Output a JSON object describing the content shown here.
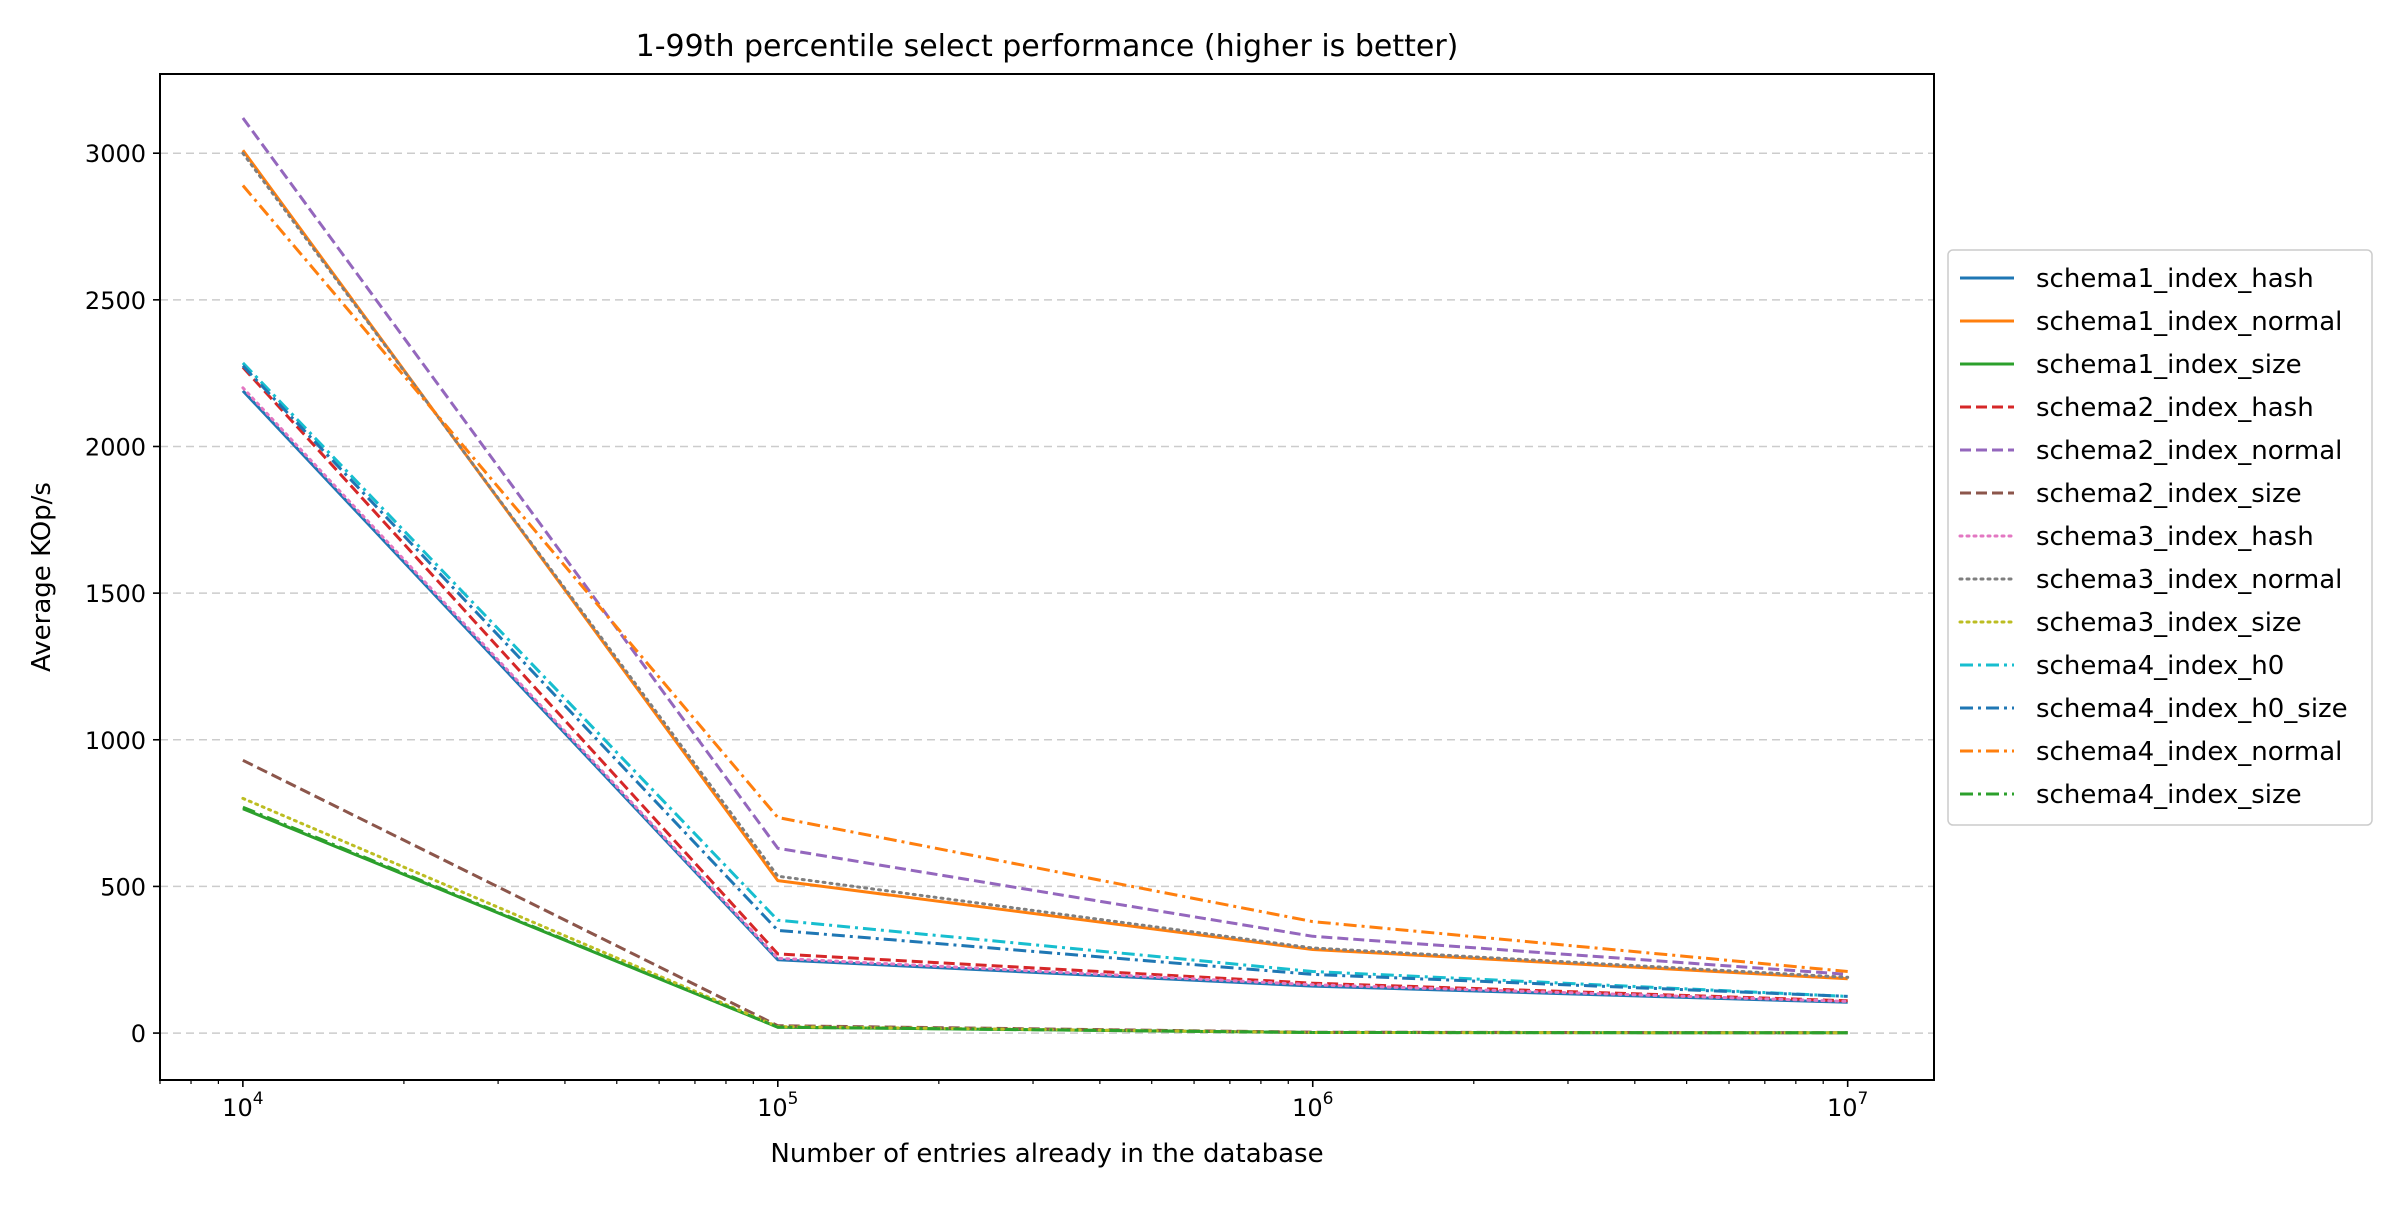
{
  "chart_data": {
    "type": "line",
    "title": "1-99th percentile select performance (higher is better)",
    "xlabel": "Number of entries already in the database",
    "ylabel": "Average KOp/s",
    "x_scale": "log",
    "x": [
      10000,
      100000,
      1000000,
      10000000
    ],
    "xlim": [
      7000,
      14500000
    ],
    "ylim": [
      -160,
      3270
    ],
    "x_ticks": [
      {
        "value": 10000,
        "base": "10",
        "exp": "4"
      },
      {
        "value": 100000,
        "base": "10",
        "exp": "5"
      },
      {
        "value": 1000000,
        "base": "10",
        "exp": "6"
      },
      {
        "value": 10000000,
        "base": "10",
        "exp": "7"
      }
    ],
    "y_ticks": [
      {
        "value": 0,
        "label": "0"
      },
      {
        "value": 500,
        "label": "500"
      },
      {
        "value": 1000,
        "label": "1000"
      },
      {
        "value": 1500,
        "label": "1500"
      },
      {
        "value": 2000,
        "label": "2000"
      },
      {
        "value": 2500,
        "label": "2500"
      },
      {
        "value": 3000,
        "label": "3000"
      }
    ],
    "grid": "y-dashed",
    "legend_position": "right",
    "series": [
      {
        "name": "schema1_index_hash",
        "color": "#1f77b4",
        "style": "solid",
        "values": [
          2190,
          250,
          160,
          105
        ]
      },
      {
        "name": "schema1_index_normal",
        "color": "#ff7f0e",
        "style": "solid",
        "values": [
          3010,
          520,
          285,
          185
        ]
      },
      {
        "name": "schema1_index_size",
        "color": "#2ca02c",
        "style": "solid",
        "values": [
          765,
          20,
          2,
          1
        ]
      },
      {
        "name": "schema2_index_hash",
        "color": "#d62728",
        "style": "dashed",
        "values": [
          2270,
          270,
          170,
          110
        ]
      },
      {
        "name": "schema2_index_normal",
        "color": "#9467bd",
        "style": "dashed",
        "values": [
          3120,
          630,
          330,
          200
        ]
      },
      {
        "name": "schema2_index_size",
        "color": "#8c564b",
        "style": "dashed",
        "values": [
          930,
          25,
          3,
          1
        ]
      },
      {
        "name": "schema3_index_hash",
        "color": "#e377c2",
        "style": "dotted",
        "values": [
          2200,
          255,
          165,
          108
        ]
      },
      {
        "name": "schema3_index_normal",
        "color": "#7f7f7f",
        "style": "dotted",
        "values": [
          3000,
          535,
          290,
          190
        ]
      },
      {
        "name": "schema3_index_size",
        "color": "#bcbd22",
        "style": "dotted",
        "values": [
          800,
          22,
          2,
          1
        ]
      },
      {
        "name": "schema4_index_h0",
        "color": "#17becf",
        "style": "dashdot",
        "values": [
          2285,
          385,
          210,
          125
        ]
      },
      {
        "name": "schema4_index_h0_size",
        "color": "#1f77b4",
        "style": "dashdot",
        "values": [
          2275,
          350,
          200,
          125
        ]
      },
      {
        "name": "schema4_index_normal",
        "color": "#ff7f0e",
        "style": "dashdot",
        "values": [
          2890,
          735,
          380,
          210
        ]
      },
      {
        "name": "schema4_index_size",
        "color": "#2ca02c",
        "style": "dashdot",
        "values": [
          770,
          20,
          2,
          1
        ]
      }
    ]
  }
}
